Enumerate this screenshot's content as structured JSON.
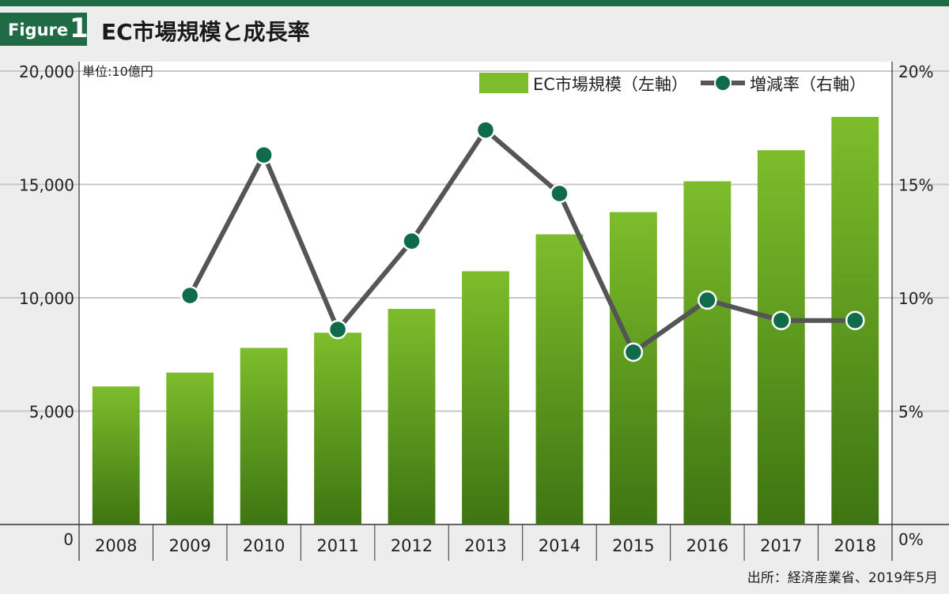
{
  "header": {
    "badge_word": "Figure",
    "badge_number": "1",
    "title": "EC市場規模と成長率"
  },
  "unit_note": "単位:10億円",
  "source": "出所：経済産業省、2019年5月",
  "colors": {
    "brand": "#1f6b45",
    "bar_top": "#7dbd2b",
    "bar_bottom": "#3e7512",
    "line": "#555555",
    "marker": "#0e6b4c",
    "grid": "#c7c7c7",
    "background": "#ededed"
  },
  "chart_data": {
    "type": "bar",
    "title": "EC市場規模と成長率",
    "categories": [
      "2008",
      "2009",
      "2010",
      "2011",
      "2012",
      "2013",
      "2014",
      "2015",
      "2016",
      "2017",
      "2018"
    ],
    "series": [
      {
        "name": "EC市場規模（左軸）",
        "type": "bar",
        "axis": "left",
        "values": [
          6090,
          6700,
          7790,
          8460,
          9510,
          11170,
          12800,
          13780,
          15140,
          16510,
          17980
        ]
      },
      {
        "name": "増減率（右軸）",
        "type": "line",
        "axis": "right",
        "values": [
          null,
          10.1,
          16.3,
          8.6,
          12.5,
          17.4,
          14.6,
          7.6,
          9.9,
          9.0,
          9.0
        ]
      }
    ],
    "y_left": {
      "lim": [
        0,
        20000
      ],
      "ticks": [
        "0",
        "5,000",
        "10,000",
        "15,000",
        "20,000"
      ],
      "values": [
        0,
        5000,
        10000,
        15000,
        20000
      ]
    },
    "y_right": {
      "lim": [
        0,
        20
      ],
      "ticks": [
        "0%",
        "5%",
        "10%",
        "15%",
        "20%"
      ],
      "values": [
        0,
        5,
        10,
        15,
        20
      ]
    },
    "grid": true,
    "legend_position": "top-right"
  }
}
